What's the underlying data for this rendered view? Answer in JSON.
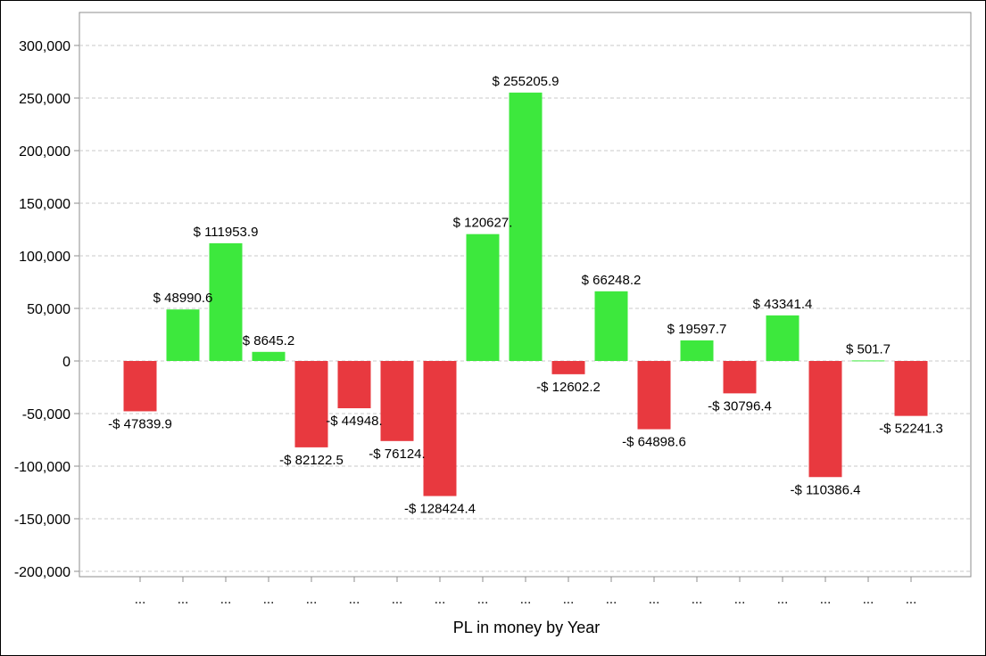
{
  "chart_data": {
    "type": "bar",
    "title": "",
    "xlabel": "PL in money by Year",
    "ylabel": "",
    "ylim": [
      -200000,
      300000
    ],
    "yticks": [
      300000,
      250000,
      200000,
      150000,
      100000,
      50000,
      0,
      -50000,
      -100000,
      -150000,
      -200000
    ],
    "ytick_labels": [
      "300,000",
      "250,000",
      "200,000",
      "150,000",
      "100,000",
      "50,000",
      "0",
      "-50,000",
      "-100,000",
      "-150,000",
      "-200,000"
    ],
    "grid": true,
    "positive_color": "#3de83d",
    "negative_color": "#e8393f",
    "categories": [
      "...",
      "...",
      "...",
      "...",
      "...",
      "...",
      "...",
      "...",
      "...",
      "...",
      "...",
      "...",
      "...",
      "...",
      "...",
      "...",
      "...",
      "...",
      "..."
    ],
    "values": [
      -47839.9,
      48990.6,
      111953.9,
      8645.2,
      -82122.5,
      -44948.5,
      -76124.5,
      -128424.4,
      120627.5,
      255205.9,
      -12602.2,
      66248.2,
      -64898.6,
      19597.7,
      -30796.4,
      43341.4,
      -110386.4,
      501.7,
      -52241.3
    ],
    "data_labels": [
      "-$ 47839.9",
      "$ 48990.6",
      "$ 111953.9",
      "$ 8645.2",
      "-$ 82122.5",
      "-$ 44948.",
      "-$ 76124.",
      "-$ 128424.4",
      "$ 120627.",
      "$ 255205.9",
      "-$ 12602.2",
      "$ 66248.2",
      "-$ 64898.6",
      "$ 19597.7",
      "-$ 30796.4",
      "$ 43341.4",
      "-$ 110386.4",
      "$ 501.7",
      "-$ 52241.3"
    ]
  }
}
